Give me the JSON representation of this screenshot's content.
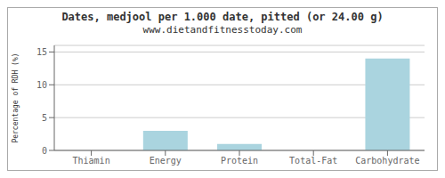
{
  "chart_data": {
    "type": "bar",
    "title": "Dates, medjool per 1.000 date, pitted (or 24.00 g)",
    "subtitle": "www.dietandfitnesstoday.com",
    "categories": [
      "Thiamin",
      "Energy",
      "Protein",
      "Total-Fat",
      "Carbohydrate"
    ],
    "values": [
      0.0,
      3.0,
      1.0,
      0.0,
      14.0
    ],
    "color": "#aad4df",
    "ylabel": "Percentage of RDH (%)",
    "ylim": [
      0,
      16
    ],
    "yticks": [
      0,
      5,
      10,
      15
    ],
    "grid": true
  }
}
